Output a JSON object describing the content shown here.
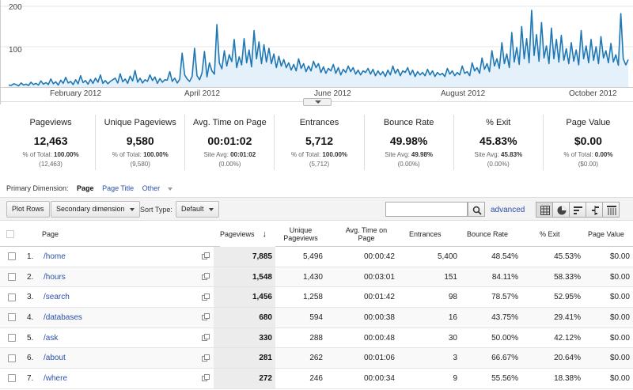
{
  "chart": {
    "y_ticks": [
      "200",
      "100"
    ],
    "x_ticks": [
      "February 2012",
      "April 2012",
      "June 2012",
      "August 2012",
      "October 2012"
    ],
    "line_color": "#1f77b4",
    "fill_color": "#e5f1fa"
  },
  "chart_data": {
    "type": "area",
    "title": "",
    "xlabel": "",
    "ylabel": "",
    "ylim": [
      0,
      200
    ],
    "x_range": [
      "2012-01-01",
      "2012-10-31"
    ],
    "series": [
      {
        "values": [
          5,
          4,
          8,
          6,
          3,
          10,
          5,
          7,
          4,
          12,
          6,
          9,
          5,
          15,
          7,
          11,
          6,
          20,
          8,
          13,
          5,
          17,
          9,
          24,
          10,
          14,
          6,
          18,
          8,
          28,
          11,
          16,
          7,
          19,
          9,
          22,
          12,
          30,
          9,
          16,
          8,
          14,
          18,
          22,
          10,
          33,
          13,
          20,
          9,
          27,
          15,
          41,
          12,
          22,
          10,
          18,
          14,
          30,
          16,
          25,
          9,
          21,
          12,
          18,
          17,
          38,
          14,
          22,
          10,
          19,
          84,
          30,
          20,
          14,
          26,
          96,
          28,
          18,
          35,
          88,
          25,
          60,
          40,
          32,
          155,
          60,
          45,
          90,
          52,
          80,
          63,
          118,
          48,
          75,
          55,
          120,
          60,
          92,
          50,
          140,
          70,
          112,
          58,
          105,
          62,
          96,
          58,
          82,
          48,
          76,
          52,
          68,
          48,
          60,
          42,
          56,
          40,
          70,
          46,
          58,
          38,
          52,
          40,
          64,
          48,
          58,
          36,
          50,
          34,
          46,
          40,
          56,
          34,
          48,
          30,
          44,
          36,
          52,
          38,
          48,
          32,
          42,
          30,
          40,
          36,
          46,
          32,
          44,
          28,
          40,
          30,
          38,
          26,
          42,
          30,
          52,
          34,
          44,
          28,
          40,
          36,
          48,
          30,
          42,
          26,
          38,
          30,
          36,
          28,
          44,
          30,
          40,
          26,
          36,
          30,
          34,
          26,
          46,
          32,
          40,
          28,
          36,
          30,
          52,
          34,
          38,
          28,
          60,
          40,
          48,
          34,
          72,
          44,
          58,
          38,
          90,
          52,
          70,
          46,
          110,
          58,
          82,
          48,
          135,
          62,
          98,
          56,
          150,
          70,
          120,
          60,
          190,
          78,
          130,
          64,
          160,
          72,
          102,
          58,
          146,
          70,
          118,
          62,
          128,
          66,
          95,
          58,
          110,
          64,
          92,
          55,
          140,
          70,
          102,
          60,
          118,
          66,
          100,
          58,
          125,
          72,
          90,
          60,
          108,
          62,
          80,
          54,
          182,
          70,
          55,
          68
        ]
      }
    ]
  },
  "scorecards": [
    {
      "title": "Pageviews",
      "value": "12,463",
      "sub1_label": "% of Total:",
      "sub1_value": "100.00%",
      "sub2": "(12,463)"
    },
    {
      "title": "Unique Pageviews",
      "value": "9,580",
      "sub1_label": "% of Total:",
      "sub1_value": "100.00%",
      "sub2": "(9,580)"
    },
    {
      "title": "Avg. Time on Page",
      "value": "00:01:02",
      "sub1_label": "Site Avg:",
      "sub1_value": "00:01:02",
      "sub2": "(0.00%)"
    },
    {
      "title": "Entrances",
      "value": "5,712",
      "sub1_label": "% of Total:",
      "sub1_value": "100.00%",
      "sub2": "(5,712)"
    },
    {
      "title": "Bounce Rate",
      "value": "49.98%",
      "sub1_label": "Site Avg:",
      "sub1_value": "49.98%",
      "sub2": "(0.00%)"
    },
    {
      "title": "% Exit",
      "value": "45.83%",
      "sub1_label": "Site Avg:",
      "sub1_value": "45.83%",
      "sub2": "(0.00%)"
    },
    {
      "title": "Page Value",
      "value": "$0.00",
      "sub1_label": "% of Total:",
      "sub1_value": "0.00%",
      "sub2": "($0.00)"
    }
  ],
  "primary_dimension": {
    "label": "Primary Dimension:",
    "active": "Page",
    "option": "Page Title",
    "other": "Other"
  },
  "toolbar": {
    "plot_rows": "Plot Rows",
    "secondary_dimension": "Secondary dimension",
    "sort_type_label": "Sort Type:",
    "sort_type_value": "Default",
    "search_value": "",
    "advanced": "advanced"
  },
  "table": {
    "headers": {
      "page": "Page",
      "pageviews": "Pageviews",
      "unique": "Unique Pageviews",
      "avg_time": "Avg. Time on Page",
      "entrances": "Entrances",
      "bounce": "Bounce Rate",
      "exit": "% Exit",
      "value": "Page Value"
    },
    "rows": [
      {
        "num": "1.",
        "page": "/home",
        "pageviews": "7,885",
        "unique": "5,496",
        "avg_time": "00:00:42",
        "entrances": "5,400",
        "bounce": "48.54%",
        "exit": "45.53%",
        "value": "$0.00"
      },
      {
        "num": "2.",
        "page": "/hours",
        "pageviews": "1,548",
        "unique": "1,430",
        "avg_time": "00:03:01",
        "entrances": "151",
        "bounce": "84.11%",
        "exit": "58.33%",
        "value": "$0.00"
      },
      {
        "num": "3.",
        "page": "/search",
        "pageviews": "1,456",
        "unique": "1,258",
        "avg_time": "00:01:42",
        "entrances": "98",
        "bounce": "78.57%",
        "exit": "52.95%",
        "value": "$0.00"
      },
      {
        "num": "4.",
        "page": "/databases",
        "pageviews": "680",
        "unique": "594",
        "avg_time": "00:00:38",
        "entrances": "16",
        "bounce": "43.75%",
        "exit": "29.41%",
        "value": "$0.00"
      },
      {
        "num": "5.",
        "page": "/ask",
        "pageviews": "330",
        "unique": "288",
        "avg_time": "00:00:48",
        "entrances": "30",
        "bounce": "50.00%",
        "exit": "42.12%",
        "value": "$0.00"
      },
      {
        "num": "6.",
        "page": "/about",
        "pageviews": "281",
        "unique": "262",
        "avg_time": "00:01:06",
        "entrances": "3",
        "bounce": "66.67%",
        "exit": "20.64%",
        "value": "$0.00"
      },
      {
        "num": "7.",
        "page": "/where",
        "pageviews": "272",
        "unique": "246",
        "avg_time": "00:00:34",
        "entrances": "9",
        "bounce": "55.56%",
        "exit": "18.38%",
        "value": "$0.00"
      }
    ]
  }
}
